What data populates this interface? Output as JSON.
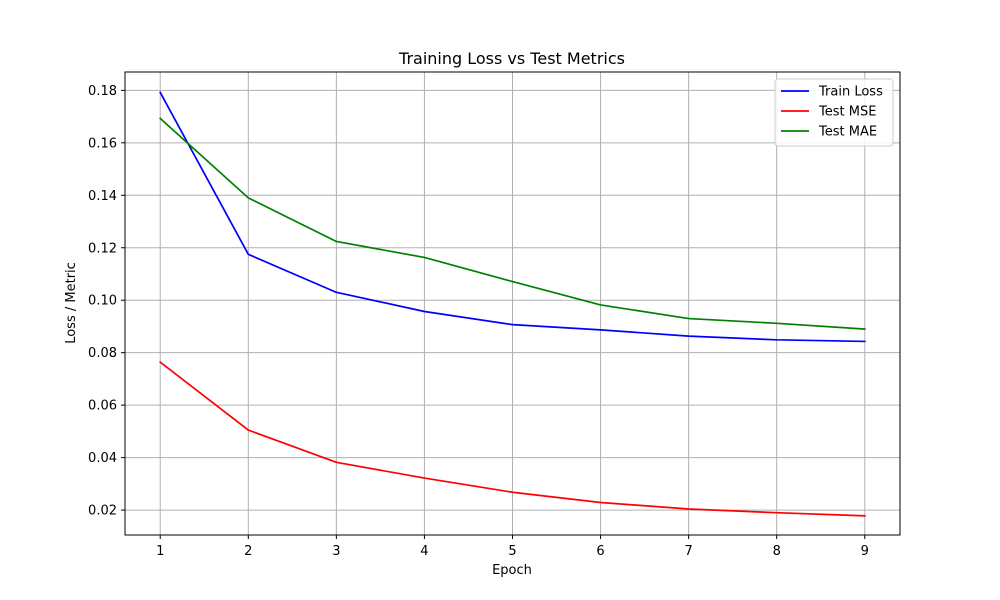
{
  "chart_data": {
    "type": "line",
    "title": "Training Loss vs Test Metrics",
    "xlabel": "Epoch",
    "ylabel": "Loss / Metric",
    "x": [
      1,
      2,
      3,
      4,
      5,
      6,
      7,
      8,
      9
    ],
    "xlim": [
      0.6,
      9.4
    ],
    "ylim": [
      0.0105,
      0.187
    ],
    "xticks": [
      1,
      2,
      3,
      4,
      5,
      6,
      7,
      8,
      9
    ],
    "yticks": [
      0.02,
      0.04,
      0.06,
      0.08,
      0.1,
      0.12,
      0.14,
      0.16,
      0.18
    ],
    "ytick_labels": [
      "0.02",
      "0.04",
      "0.06",
      "0.08",
      "0.10",
      "0.12",
      "0.14",
      "0.16",
      "0.18"
    ],
    "grid": true,
    "legend_position": "top-right",
    "series": [
      {
        "name": "Train Loss",
        "color": "#0000ff",
        "values": [
          0.1792,
          0.1175,
          0.103,
          0.0957,
          0.0907,
          0.0887,
          0.0863,
          0.0849,
          0.0843
        ]
      },
      {
        "name": "Test MSE",
        "color": "#ff0000",
        "values": [
          0.0764,
          0.0505,
          0.0382,
          0.0322,
          0.0268,
          0.0229,
          0.0204,
          0.019,
          0.0178
        ]
      },
      {
        "name": "Test MAE",
        "color": "#008000",
        "values": [
          0.1693,
          0.139,
          0.1224,
          0.1163,
          0.1071,
          0.0982,
          0.093,
          0.0912,
          0.089
        ]
      }
    ]
  }
}
